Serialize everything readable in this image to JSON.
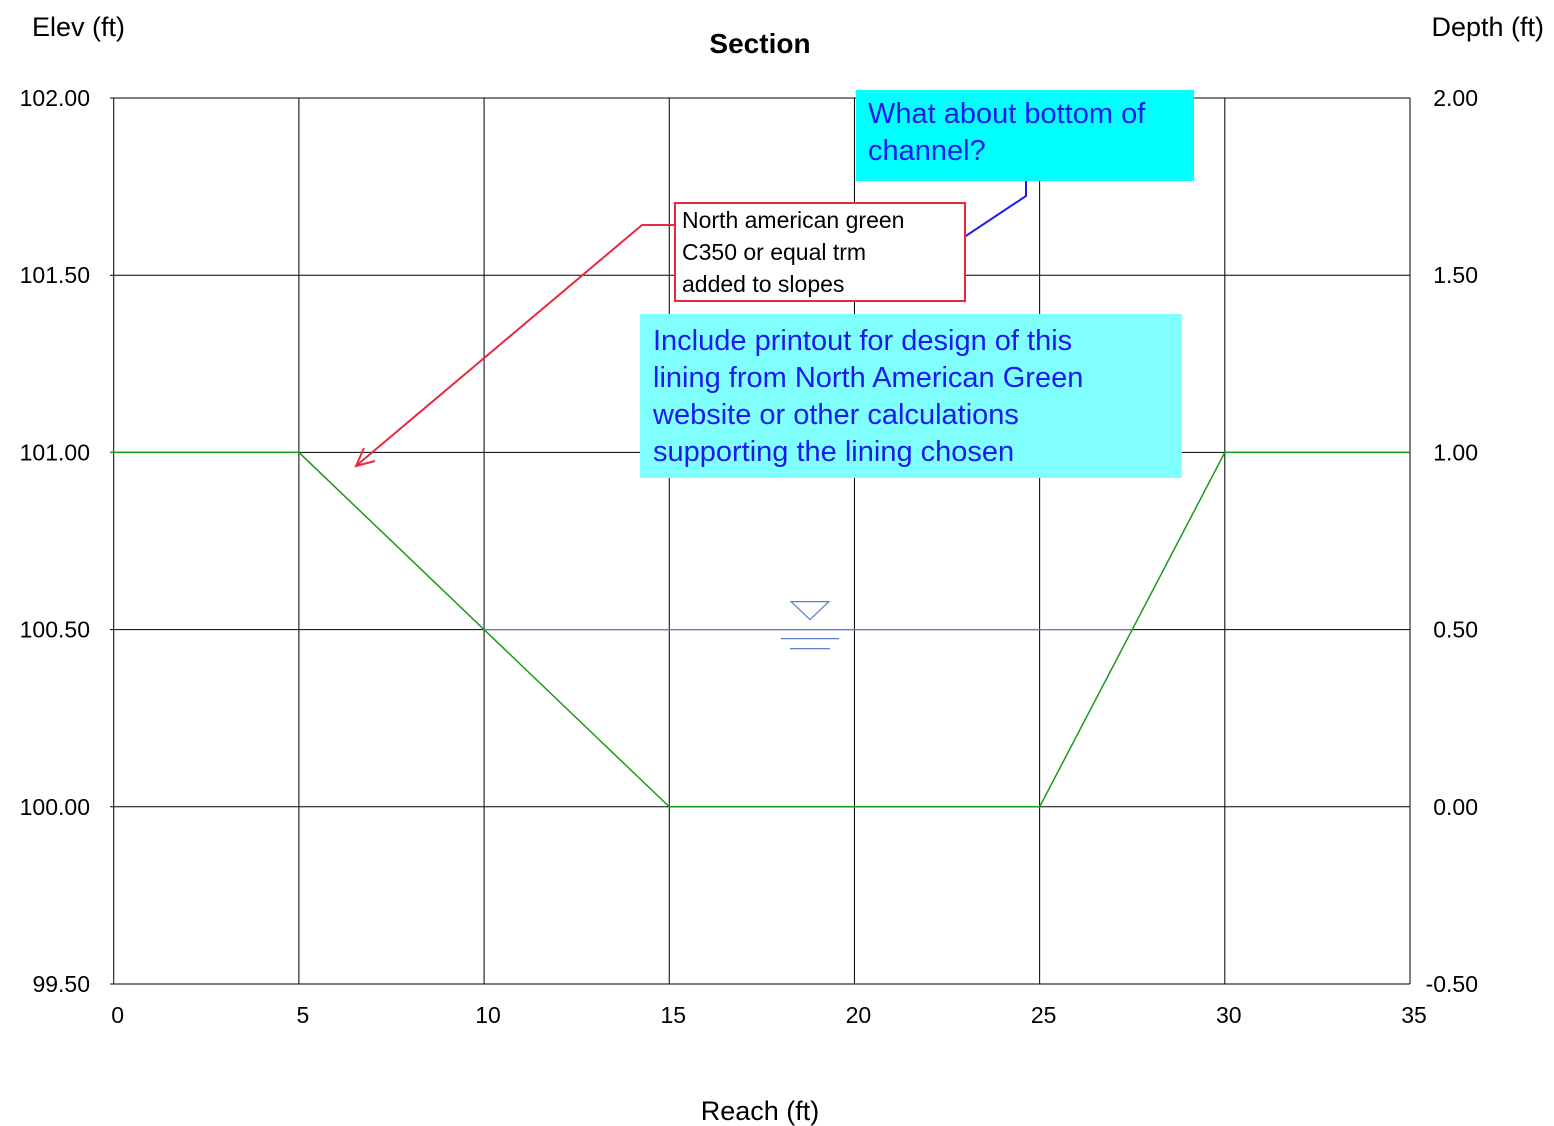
{
  "chart_data": {
    "type": "line",
    "title": "Section",
    "xlabel": "Reach (ft)",
    "ylabel": "Elev (ft)",
    "y2label": "Depth (ft)",
    "xlim": [
      -0.1,
      35
    ],
    "ylim": [
      99.5,
      102.0
    ],
    "y2lim": [
      -0.5,
      2.0
    ],
    "x_ticks": [
      0,
      5,
      10,
      15,
      20,
      25,
      30,
      35
    ],
    "x_tick_labels": [
      "0",
      "5",
      "10",
      "15",
      "20",
      "25",
      "30",
      "35"
    ],
    "y_ticks": [
      99.5,
      100.0,
      100.5,
      101.0,
      101.5,
      102.0
    ],
    "y_tick_labels": [
      "99.50",
      "100.00",
      "100.50",
      "101.00",
      "101.50",
      "102.00"
    ],
    "y2_tick_labels": [
      "-0.50",
      "0.00",
      "0.50",
      "1.00",
      "1.50",
      "2.00"
    ],
    "grid": true,
    "colors": {
      "ground": "#1a9a1a",
      "water": "#5b80c8",
      "grid": "#000000"
    },
    "series": [
      {
        "x": [
          -0.1,
          5,
          15,
          25,
          30,
          35
        ],
        "y": [
          101.0,
          101.0,
          100.0,
          100.0,
          101.0,
          101.0
        ]
      },
      {
        "x": [
          10,
          27.5
        ],
        "y": [
          100.5,
          100.5
        ]
      }
    ],
    "water_symbol": {
      "x": 18.8,
      "y": 100.5
    }
  },
  "annotations": {
    "red_note": {
      "lines": [
        "North american green",
        "C350 or equal trm",
        "added to slopes"
      ]
    },
    "question_note": {
      "lines": [
        "What about bottom of",
        "channel?"
      ]
    },
    "printout_note": {
      "lines": [
        "Include printout for design of this",
        "lining from North American Green",
        "website or other calculations",
        "supporting the lining chosen"
      ]
    }
  }
}
